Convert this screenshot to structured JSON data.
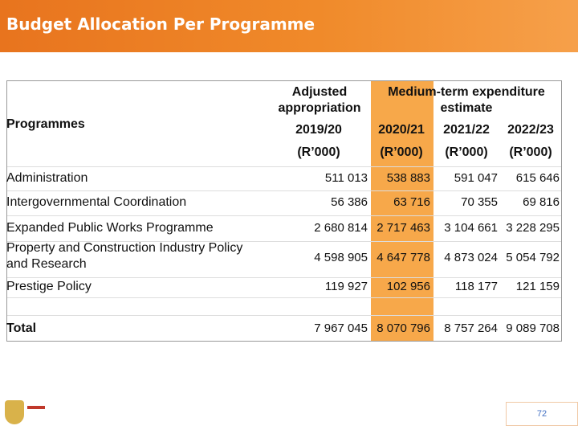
{
  "header": {
    "title": "Budget Allocation Per Programme"
  },
  "table": {
    "head": {
      "programmes": "Programmes",
      "adjusted": "Adjusted appropriation",
      "mtef": "Medium-term expenditure estimate",
      "years": [
        "2019/20",
        "2020/21",
        "2021/22",
        "2022/23"
      ],
      "units": [
        "(R’000)",
        "(R’000)",
        "(R’000)",
        "(R’000)"
      ]
    },
    "rows": [
      [
        "Administration",
        "511 013",
        "538 883",
        "591 047",
        "615 646"
      ],
      [
        "Intergovernmental Coordination",
        "56 386",
        "63 716",
        "70 355",
        "69 816"
      ],
      [
        "Expanded Public Works Programme",
        "2 680 814",
        "2 717 463",
        "3 104 661",
        "3 228 295"
      ],
      [
        "Property and Construction Industry Policy and Research",
        "4 598 905",
        "4 647 778",
        "4 873 024",
        "5 054 792"
      ],
      [
        "Prestige Policy",
        "119 927",
        "102 956",
        "118 177",
        "121 159"
      ]
    ],
    "total": [
      "Total",
      "7 967 045",
      "8 070 796",
      "8 757 264",
      "9 089 708"
    ]
  },
  "page_number": "72"
}
